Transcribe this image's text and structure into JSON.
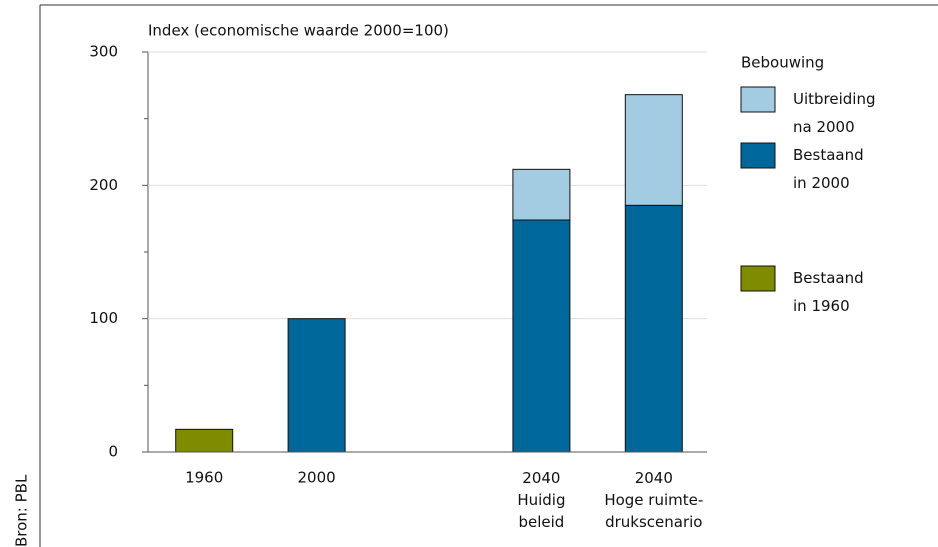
{
  "chart_data": {
    "type": "stacked_bar",
    "title": "Index (economische waarde 2000=100)",
    "source": "Bron: PBL",
    "legend_title": "Bebouwing",
    "categories": [
      "1960",
      "2000",
      null,
      "2040\nHuidig\nbeleid",
      "2040\nHoge ruimte-\ndrukscenario"
    ],
    "series": [
      {
        "name": "Bestaand\nin 1960",
        "color": "#7f8c00",
        "values": [
          17,
          null,
          null,
          null,
          null
        ]
      },
      {
        "name": "Bestaand\nin 2000",
        "color": "#00679b",
        "values": [
          null,
          100,
          null,
          174,
          185
        ]
      },
      {
        "name": "Uitbreiding\nna 2000",
        "color": "#a3cce3",
        "values": [
          null,
          null,
          null,
          38,
          83
        ]
      }
    ],
    "ylim": [
      0,
      300
    ],
    "yticks": [
      0,
      100,
      200,
      300
    ],
    "yminorticks": [
      50,
      150,
      250
    ],
    "grid": true,
    "legend": "right"
  }
}
